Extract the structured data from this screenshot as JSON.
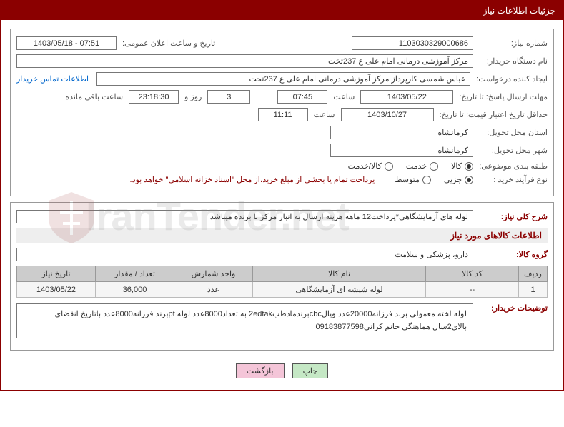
{
  "panel": {
    "title": "جزئیات اطلاعات نیاز"
  },
  "labels": {
    "need_no": "شماره نیاز:",
    "announce_datetime": "تاریخ و ساعت اعلان عمومی:",
    "buyer_org": "نام دستگاه خریدار:",
    "requester": "ایجاد کننده درخواست:",
    "contact_link": "اطلاعات تماس خریدار",
    "reply_deadline": "مهلت ارسال پاسخ:  تا تاریخ:",
    "hour": "ساعت",
    "days_and": "روز و",
    "remaining": "ساعت باقی مانده",
    "price_valid": "حداقل تاریخ اعتبار قیمت:  تا تاریخ:",
    "delivery_province": "استان محل تحویل:",
    "delivery_city": "شهر محل تحویل:",
    "category": "طبقه بندی موضوعی:",
    "purchase_type": "نوع فرآیند خرید :",
    "need_desc": "شرح کلی نیاز:",
    "goods_info": "اطلاعات کالاهای مورد نیاز",
    "goods_group": "گروه کالا:",
    "buyer_notes": "توضیحات خریدار:"
  },
  "values": {
    "need_no": "1103030329000686",
    "announce_datetime": "1403/05/18 - 07:51",
    "buyer_org": "مرکز آموزشی درمانی امام علی ع 237تخت",
    "requester": "عباس شمسی کارپرداز   مرکز آموزشی درمانی امام علی ع 237تخت",
    "reply_date": "1403/05/22",
    "reply_time": "07:45",
    "days_left": "3",
    "countdown": "23:18:30",
    "price_valid_date": "1403/10/27",
    "price_valid_time": "11:11",
    "province": "کرمانشاه",
    "city": "کرمانشاه",
    "need_desc": "لوله های آزمایشگاهی*پرداخت12 ماهه   هزینه ارسال به انبار مرکز با برنده میباشد",
    "goods_group": "دارو، پزشکی و سلامت",
    "buyer_notes": "لوله لخته معمولی برند فرزانه20000عدد    ویالcbcبرندمادطب2edtak به تعداد8000عدد     لوله ptبرند فرزانه8000عدد باتاریخ انقضای بالای2سال   هماهنگی خانم کرانی09183877598"
  },
  "category_opts": {
    "o1": "کالا",
    "o2": "خدمت",
    "o3": "کالا/خدمت",
    "selected": "o1"
  },
  "purchase_opts": {
    "o1": "جزیی",
    "o2": "متوسط",
    "note": "پرداخت تمام یا بخشی از مبلغ خرید،از محل \"اسناد خزانه اسلامی\" خواهد بود.",
    "selected": "o1"
  },
  "table": {
    "headers": {
      "idx": "ردیف",
      "code": "کد کالا",
      "name": "نام کالا",
      "unit": "واحد شمارش",
      "qty": "تعداد / مقدار",
      "date": "تاریخ نیاز"
    },
    "rows": [
      {
        "idx": "1",
        "code": "--",
        "name": "لوله شیشه ای آزمایشگاهی",
        "unit": "عدد",
        "qty": "36,000",
        "date": "1403/05/22"
      }
    ]
  },
  "buttons": {
    "print": "چاپ",
    "back": "بازگشت"
  },
  "watermark": "IranTender.net"
}
